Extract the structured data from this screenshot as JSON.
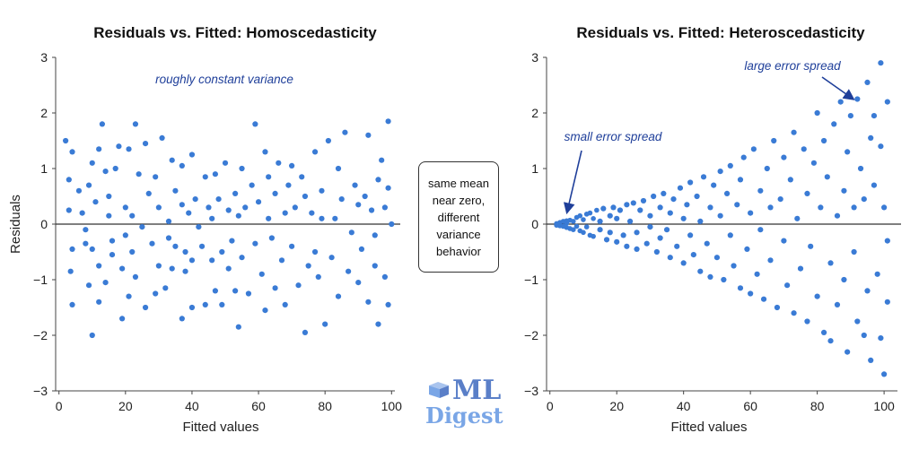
{
  "chart_data": [
    {
      "type": "scatter",
      "title": "Residuals vs. Fitted: Homoscedasticity",
      "xlabel": "Fitted values",
      "ylabel": "Residuals",
      "xlim": [
        -1,
        101
      ],
      "ylim": [
        -3,
        3
      ],
      "xticks": [
        0,
        20,
        40,
        60,
        80,
        100
      ],
      "yticks": [
        -3,
        -2,
        -1,
        0,
        1,
        2,
        3
      ],
      "ytick_labels": [
        "−3",
        "−2",
        "−1",
        "0",
        "1",
        "2",
        "3"
      ],
      "reference_line_y": 0,
      "grid": false,
      "annotation": "roughly constant variance",
      "points": [
        [
          2,
          1.5
        ],
        [
          3,
          0.8
        ],
        [
          3,
          0.25
        ],
        [
          4,
          -0.45
        ],
        [
          3.5,
          -0.85
        ],
        [
          4,
          1.3
        ],
        [
          4,
          -1.45
        ],
        [
          6,
          0.6
        ],
        [
          7,
          0.2
        ],
        [
          8,
          -0.1
        ],
        [
          8,
          -0.35
        ],
        [
          9,
          0.7
        ],
        [
          9,
          -1.1
        ],
        [
          10,
          1.1
        ],
        [
          10,
          -0.45
        ],
        [
          10,
          -2.0
        ],
        [
          11,
          0.4
        ],
        [
          12,
          1.35
        ],
        [
          12,
          -0.75
        ],
        [
          12,
          -1.4
        ],
        [
          13,
          1.8
        ],
        [
          14,
          0.95
        ],
        [
          14,
          -1.05
        ],
        [
          15,
          0.5
        ],
        [
          15,
          0.15
        ],
        [
          16,
          -0.3
        ],
        [
          16,
          -0.55
        ],
        [
          17,
          1.0
        ],
        [
          18,
          1.4
        ],
        [
          19,
          -1.7
        ],
        [
          19,
          -0.8
        ],
        [
          20,
          0.3
        ],
        [
          20,
          -0.2
        ],
        [
          21,
          1.35
        ],
        [
          21,
          -1.3
        ],
        [
          22,
          0.15
        ],
        [
          22,
          -0.5
        ],
        [
          23,
          1.8
        ],
        [
          23,
          -0.95
        ],
        [
          24,
          0.9
        ],
        [
          25,
          -0.05
        ],
        [
          26,
          1.45
        ],
        [
          26,
          -1.5
        ],
        [
          27,
          0.55
        ],
        [
          28,
          -0.35
        ],
        [
          29,
          -1.25
        ],
        [
          29,
          0.85
        ],
        [
          30,
          0.3
        ],
        [
          30,
          -0.75
        ],
        [
          31,
          1.55
        ],
        [
          32,
          -1.15
        ],
        [
          33,
          0.05
        ],
        [
          33,
          -0.25
        ],
        [
          34,
          1.15
        ],
        [
          34,
          -0.8
        ],
        [
          35,
          0.6
        ],
        [
          35,
          -0.4
        ],
        [
          37,
          1.05
        ],
        [
          37,
          -1.7
        ],
        [
          37,
          0.35
        ],
        [
          38,
          -0.5
        ],
        [
          38,
          -0.85
        ],
        [
          39,
          0.2
        ],
        [
          40,
          1.25
        ],
        [
          40,
          -0.65
        ],
        [
          40,
          -1.5
        ],
        [
          41,
          0.45
        ],
        [
          42,
          -0.05
        ],
        [
          43,
          -0.4
        ],
        [
          44,
          0.85
        ],
        [
          44,
          -1.45
        ],
        [
          45,
          0.3
        ],
        [
          46,
          0.1
        ],
        [
          46,
          -0.65
        ],
        [
          47,
          -1.2
        ],
        [
          47,
          0.9
        ],
        [
          48,
          0.45
        ],
        [
          49,
          -0.5
        ],
        [
          49,
          -1.45
        ],
        [
          50,
          1.1
        ],
        [
          51,
          0.25
        ],
        [
          51,
          -0.8
        ],
        [
          52,
          -0.3
        ],
        [
          53,
          0.55
        ],
        [
          53,
          -1.2
        ],
        [
          54,
          0.15
        ],
        [
          54,
          -1.85
        ],
        [
          55,
          -0.6
        ],
        [
          55,
          1.0
        ],
        [
          56,
          0.3
        ],
        [
          57,
          -1.25
        ],
        [
          58,
          0.7
        ],
        [
          59,
          1.8
        ],
        [
          59,
          -0.35
        ],
        [
          60,
          0.4
        ],
        [
          61,
          -0.9
        ],
        [
          62,
          1.3
        ],
        [
          62,
          -1.55
        ],
        [
          63,
          0.85
        ],
        [
          63,
          0.1
        ],
        [
          64,
          -0.25
        ],
        [
          65,
          0.55
        ],
        [
          65,
          -1.15
        ],
        [
          66,
          1.1
        ],
        [
          67,
          -0.65
        ],
        [
          68,
          0.2
        ],
        [
          68,
          -1.45
        ],
        [
          69,
          0.7
        ],
        [
          70,
          -0.4
        ],
        [
          70,
          1.05
        ],
        [
          71,
          0.3
        ],
        [
          72,
          -1.1
        ],
        [
          73,
          0.85
        ],
        [
          74,
          -1.95
        ],
        [
          74,
          0.5
        ],
        [
          75,
          -0.75
        ],
        [
          76,
          0.2
        ],
        [
          77,
          1.3
        ],
        [
          77,
          -0.5
        ],
        [
          78,
          -0.95
        ],
        [
          79,
          0.6
        ],
        [
          79,
          0.1
        ],
        [
          80,
          -1.8
        ],
        [
          81,
          1.5
        ],
        [
          82,
          -0.6
        ],
        [
          83,
          0.1
        ],
        [
          84,
          1.0
        ],
        [
          84,
          -1.3
        ],
        [
          85,
          0.45
        ],
        [
          86,
          1.65
        ],
        [
          87,
          -0.85
        ],
        [
          88,
          -0.15
        ],
        [
          89,
          0.7
        ],
        [
          90,
          0.35
        ],
        [
          90,
          -1.05
        ],
        [
          91,
          -0.45
        ],
        [
          92,
          0.5
        ],
        [
          93,
          1.6
        ],
        [
          93,
          -1.4
        ],
        [
          94,
          0.25
        ],
        [
          95,
          -0.2
        ],
        [
          95,
          -0.75
        ],
        [
          96,
          0.8
        ],
        [
          96,
          -1.8
        ],
        [
          97,
          1.15
        ],
        [
          98,
          0.3
        ],
        [
          98,
          -0.95
        ],
        [
          99,
          1.85
        ],
        [
          99,
          0.65
        ],
        [
          99,
          -1.45
        ],
        [
          100,
          0.0
        ]
      ]
    },
    {
      "type": "scatter",
      "title": "Residuals vs. Fitted: Heteroscedasticity",
      "xlabel": "Fitted values",
      "ylabel": "",
      "xlim": [
        -1,
        104
      ],
      "ylim": [
        -3,
        3
      ],
      "xticks": [
        0,
        20,
        40,
        60,
        80,
        100
      ],
      "yticks": [
        -3,
        -2,
        -1,
        0,
        1,
        2,
        3
      ],
      "ytick_labels": [
        "−3",
        "−2",
        "−1",
        "0",
        "1",
        "2",
        "3"
      ],
      "reference_line_y": 0,
      "grid": false,
      "annotations": [
        "small error spread",
        "large error spread"
      ],
      "points": [
        [
          2,
          0.01
        ],
        [
          2,
          -0.02
        ],
        [
          3,
          0.03
        ],
        [
          3,
          -0.03
        ],
        [
          4,
          0.05
        ],
        [
          4,
          -0.04
        ],
        [
          5,
          0.06
        ],
        [
          5,
          -0.06
        ],
        [
          5,
          0.02
        ],
        [
          6,
          0.07
        ],
        [
          6,
          -0.08
        ],
        [
          7,
          0.05
        ],
        [
          7,
          -0.1
        ],
        [
          8,
          0.12
        ],
        [
          8,
          -0.04
        ],
        [
          9,
          0.15
        ],
        [
          9,
          -0.12
        ],
        [
          10,
          0.08
        ],
        [
          10,
          -0.15
        ],
        [
          11,
          0.18
        ],
        [
          11,
          -0.05
        ],
        [
          12,
          0.2
        ],
        [
          12,
          -0.2
        ],
        [
          13,
          0.1
        ],
        [
          13,
          -0.22
        ],
        [
          14,
          0.25
        ],
        [
          15,
          -0.1
        ],
        [
          15,
          0.05
        ],
        [
          16,
          0.28
        ],
        [
          17,
          -0.28
        ],
        [
          18,
          0.15
        ],
        [
          18,
          -0.15
        ],
        [
          19,
          0.3
        ],
        [
          20,
          -0.32
        ],
        [
          20,
          0.1
        ],
        [
          21,
          0.25
        ],
        [
          22,
          -0.2
        ],
        [
          23,
          0.35
        ],
        [
          23,
          -0.4
        ],
        [
          24,
          0.05
        ],
        [
          25,
          0.38
        ],
        [
          26,
          -0.15
        ],
        [
          26,
          -0.45
        ],
        [
          27,
          0.25
        ],
        [
          28,
          0.42
        ],
        [
          29,
          -0.35
        ],
        [
          30,
          0.15
        ],
        [
          30,
          -0.05
        ],
        [
          31,
          0.5
        ],
        [
          32,
          -0.5
        ],
        [
          33,
          0.3
        ],
        [
          33,
          -0.25
        ],
        [
          34,
          0.55
        ],
        [
          35,
          -0.1
        ],
        [
          36,
          0.2
        ],
        [
          36,
          -0.6
        ],
        [
          37,
          0.45
        ],
        [
          38,
          -0.4
        ],
        [
          39,
          0.65
        ],
        [
          40,
          0.1
        ],
        [
          40,
          -0.7
        ],
        [
          41,
          0.35
        ],
        [
          42,
          -0.2
        ],
        [
          42,
          0.75
        ],
        [
          43,
          -0.55
        ],
        [
          44,
          0.5
        ],
        [
          45,
          0.05
        ],
        [
          45,
          -0.85
        ],
        [
          46,
          0.85
        ],
        [
          47,
          -0.35
        ],
        [
          48,
          0.3
        ],
        [
          48,
          -0.95
        ],
        [
          49,
          0.7
        ],
        [
          50,
          -0.6
        ],
        [
          51,
          0.95
        ],
        [
          51,
          0.15
        ],
        [
          52,
          -1.0
        ],
        [
          53,
          0.55
        ],
        [
          54,
          -0.2
        ],
        [
          54,
          1.05
        ],
        [
          55,
          -0.75
        ],
        [
          56,
          0.35
        ],
        [
          57,
          -1.15
        ],
        [
          57,
          0.8
        ],
        [
          58,
          1.2
        ],
        [
          59,
          -0.45
        ],
        [
          60,
          0.2
        ],
        [
          60,
          -1.25
        ],
        [
          61,
          1.35
        ],
        [
          62,
          -0.9
        ],
        [
          63,
          0.6
        ],
        [
          63,
          -0.1
        ],
        [
          64,
          -1.35
        ],
        [
          65,
          1.0
        ],
        [
          66,
          0.3
        ],
        [
          66,
          -0.65
        ],
        [
          67,
          1.5
        ],
        [
          68,
          -1.5
        ],
        [
          69,
          0.45
        ],
        [
          70,
          -0.3
        ],
        [
          70,
          1.2
        ],
        [
          71,
          -1.1
        ],
        [
          72,
          0.8
        ],
        [
          73,
          1.65
        ],
        [
          73,
          -1.6
        ],
        [
          74,
          0.1
        ],
        [
          75,
          -0.8
        ],
        [
          76,
          1.35
        ],
        [
          77,
          -1.75
        ],
        [
          77,
          0.55
        ],
        [
          78,
          -0.4
        ],
        [
          79,
          1.1
        ],
        [
          80,
          -1.3
        ],
        [
          80,
          2.0
        ],
        [
          81,
          0.3
        ],
        [
          82,
          -1.95
        ],
        [
          82,
          1.5
        ],
        [
          83,
          0.85
        ],
        [
          84,
          -0.7
        ],
        [
          84,
          -2.1
        ],
        [
          85,
          1.8
        ],
        [
          86,
          0.15
        ],
        [
          86,
          -1.45
        ],
        [
          87,
          2.2
        ],
        [
          88,
          0.6
        ],
        [
          88,
          -1.0
        ],
        [
          89,
          1.3
        ],
        [
          89,
          -2.3
        ],
        [
          90,
          1.95
        ],
        [
          91,
          -0.5
        ],
        [
          91,
          0.3
        ],
        [
          92,
          2.25
        ],
        [
          92,
          -1.75
        ],
        [
          93,
          1.0
        ],
        [
          94,
          -2.0
        ],
        [
          94,
          0.45
        ],
        [
          95,
          2.55
        ],
        [
          95,
          -1.2
        ],
        [
          96,
          1.55
        ],
        [
          96,
          -2.45
        ],
        [
          97,
          0.7
        ],
        [
          97,
          1.95
        ],
        [
          98,
          -0.9
        ],
        [
          99,
          2.9
        ],
        [
          99,
          -2.05
        ],
        [
          99,
          1.4
        ],
        [
          100,
          -2.7
        ],
        [
          100,
          0.3
        ],
        [
          101,
          2.2
        ],
        [
          101,
          -1.4
        ],
        [
          101,
          -0.3
        ]
      ]
    }
  ],
  "middle_box": {
    "text": "same mean\nnear zero,\ndifferent\nvariance\nbehavior"
  },
  "logo": {
    "line1": "ML",
    "line2": "Digest"
  },
  "colors": {
    "points": "#3a7bd5",
    "annotation": "#1f3f9a",
    "logo_ml": "#5a7fc8",
    "logo_digest": "#7aa6e6"
  }
}
